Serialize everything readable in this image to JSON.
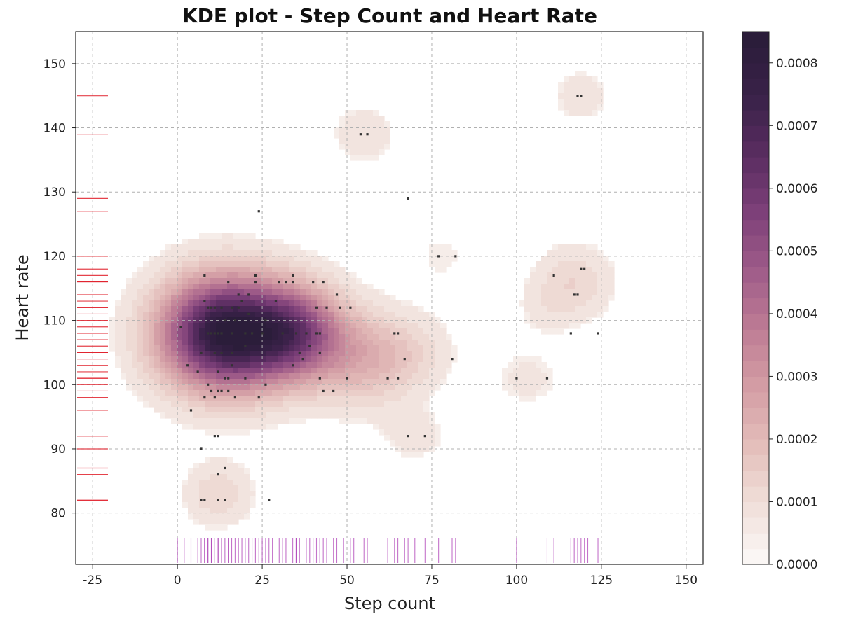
{
  "chart_data": {
    "type": "scatter",
    "title": "KDE plot - Step Count and Heart Rate",
    "xlabel": "Step count",
    "ylabel": "Heart rate",
    "xlim": [
      -30,
      155
    ],
    "ylim": [
      72,
      155
    ],
    "xticks": [
      -25,
      0,
      25,
      50,
      75,
      100,
      125,
      150
    ],
    "yticks": [
      80,
      90,
      100,
      110,
      120,
      130,
      140,
      150
    ],
    "grid": true,
    "overlay": "2D KDE density contours with marginal rug marks",
    "colorbar": {
      "label": "",
      "min": 0.0,
      "max": 0.00085,
      "ticks": [
        "0.0000",
        "0.0001",
        "0.0002",
        "0.0003",
        "0.0004",
        "0.0005",
        "0.0006",
        "0.0007",
        "0.0008"
      ],
      "colors": [
        "#faf6f4",
        "#f0ddd7",
        "#e3bcb9",
        "#d39ca4",
        "#bd7b95",
        "#9f5c89",
        "#7d4079",
        "#5a2d61",
        "#3a2249",
        "#2b1d3a"
      ]
    },
    "kde_clusters": [
      {
        "x": 14,
        "y": 108,
        "sx": 13,
        "sy": 6,
        "w": 1.0
      },
      {
        "x": 35,
        "y": 108,
        "sx": 10,
        "sy": 5,
        "w": 0.55
      },
      {
        "x": 55,
        "y": 104,
        "sx": 10,
        "sy": 5,
        "w": 0.22
      },
      {
        "x": 12,
        "y": 83,
        "sx": 7,
        "sy": 3.5,
        "w": 0.12
      },
      {
        "x": 70,
        "y": 92,
        "sx": 7,
        "sy": 3,
        "w": 0.06
      },
      {
        "x": 117,
        "y": 116,
        "sx": 8,
        "sy": 4,
        "w": 0.12
      },
      {
        "x": 119,
        "y": 145,
        "sx": 6,
        "sy": 3,
        "w": 0.07
      },
      {
        "x": 55,
        "y": 139,
        "sx": 7,
        "sy": 3.5,
        "w": 0.07
      },
      {
        "x": 78,
        "y": 120,
        "sx": 8,
        "sy": 4,
        "w": 0.04
      },
      {
        "x": 103,
        "y": 101,
        "sx": 9,
        "sy": 4,
        "w": 0.05
      },
      {
        "x": 70,
        "y": 105,
        "sx": 8,
        "sy": 4,
        "w": 0.08
      },
      {
        "x": 108,
        "y": 112,
        "sx": 6,
        "sy": 3,
        "w": 0.04
      }
    ],
    "points": [
      [
        1,
        109
      ],
      [
        3,
        103
      ],
      [
        4,
        96
      ],
      [
        6,
        102
      ],
      [
        7,
        90
      ],
      [
        7,
        82
      ],
      [
        8,
        82
      ],
      [
        7,
        105
      ],
      [
        8,
        98
      ],
      [
        8,
        113
      ],
      [
        8,
        117
      ],
      [
        9,
        108
      ],
      [
        9,
        112
      ],
      [
        9,
        100
      ],
      [
        10,
        99
      ],
      [
        10,
        112
      ],
      [
        10,
        108
      ],
      [
        11,
        112
      ],
      [
        11,
        108
      ],
      [
        11,
        105
      ],
      [
        11,
        98
      ],
      [
        11,
        92
      ],
      [
        12,
        108
      ],
      [
        12,
        102
      ],
      [
        12,
        99
      ],
      [
        12,
        92
      ],
      [
        12,
        86
      ],
      [
        12,
        82
      ],
      [
        13,
        112
      ],
      [
        13,
        105
      ],
      [
        13,
        108
      ],
      [
        13,
        99
      ],
      [
        14,
        110
      ],
      [
        14,
        101
      ],
      [
        14,
        87
      ],
      [
        14,
        82
      ],
      [
        15,
        101
      ],
      [
        15,
        99
      ],
      [
        15,
        116
      ],
      [
        16,
        108
      ],
      [
        16,
        103
      ],
      [
        16,
        105
      ],
      [
        16,
        112
      ],
      [
        17,
        98
      ],
      [
        17,
        110
      ],
      [
        18,
        114
      ],
      [
        18,
        112
      ],
      [
        19,
        113
      ],
      [
        20,
        108
      ],
      [
        20,
        106
      ],
      [
        20,
        101
      ],
      [
        21,
        114
      ],
      [
        21,
        111
      ],
      [
        22,
        108
      ],
      [
        23,
        117
      ],
      [
        23,
        116
      ],
      [
        24,
        127
      ],
      [
        24,
        98
      ],
      [
        25,
        108
      ],
      [
        26,
        100
      ],
      [
        26,
        110
      ],
      [
        27,
        82
      ],
      [
        29,
        113
      ],
      [
        30,
        116
      ],
      [
        31,
        108
      ],
      [
        32,
        116
      ],
      [
        34,
        117
      ],
      [
        34,
        103
      ],
      [
        34,
        116
      ],
      [
        35,
        108
      ],
      [
        36,
        105
      ],
      [
        37,
        104
      ],
      [
        38,
        108
      ],
      [
        39,
        106
      ],
      [
        40,
        116
      ],
      [
        41,
        108
      ],
      [
        41,
        112
      ],
      [
        42,
        101
      ],
      [
        42,
        108
      ],
      [
        42,
        105
      ],
      [
        43,
        116
      ],
      [
        43,
        99
      ],
      [
        44,
        112
      ],
      [
        46,
        99
      ],
      [
        47,
        114
      ],
      [
        48,
        112
      ],
      [
        50,
        101
      ],
      [
        51,
        112
      ],
      [
        54,
        139
      ],
      [
        56,
        139
      ],
      [
        62,
        101
      ],
      [
        64,
        108
      ],
      [
        65,
        108
      ],
      [
        65,
        101
      ],
      [
        67,
        104
      ],
      [
        68,
        92
      ],
      [
        68,
        129
      ],
      [
        73,
        92
      ],
      [
        77,
        120
      ],
      [
        81,
        104
      ],
      [
        82,
        120
      ],
      [
        100,
        101
      ],
      [
        109,
        101
      ],
      [
        111,
        117
      ],
      [
        116,
        108
      ],
      [
        117,
        114
      ],
      [
        118,
        114
      ],
      [
        118,
        145
      ],
      [
        119,
        145
      ],
      [
        119,
        118
      ],
      [
        120,
        118
      ],
      [
        124,
        108
      ]
    ],
    "rug_x": [
      0,
      2,
      4,
      6,
      7,
      8,
      8,
      9,
      9,
      10,
      10,
      11,
      11,
      12,
      12,
      13,
      13,
      14,
      15,
      15,
      16,
      17,
      18,
      19,
      20,
      21,
      22,
      23,
      24,
      25,
      26,
      27,
      28,
      30,
      31,
      32,
      34,
      35,
      35,
      36,
      38,
      39,
      40,
      41,
      42,
      42,
      43,
      44,
      46,
      47,
      49,
      51,
      52,
      55,
      56,
      62,
      64,
      65,
      67,
      68,
      70,
      73,
      77,
      81,
      82,
      100,
      109,
      111,
      116,
      117,
      118,
      119,
      120,
      121,
      124
    ],
    "rug_y": [
      82,
      82,
      86,
      87,
      90,
      92,
      92,
      96,
      98,
      99,
      100,
      101,
      101,
      102,
      103,
      104,
      105,
      105,
      106,
      107,
      108,
      108,
      109,
      110,
      111,
      112,
      112,
      113,
      114,
      116,
      116,
      117,
      118,
      120,
      127,
      129,
      139,
      145
    ]
  }
}
